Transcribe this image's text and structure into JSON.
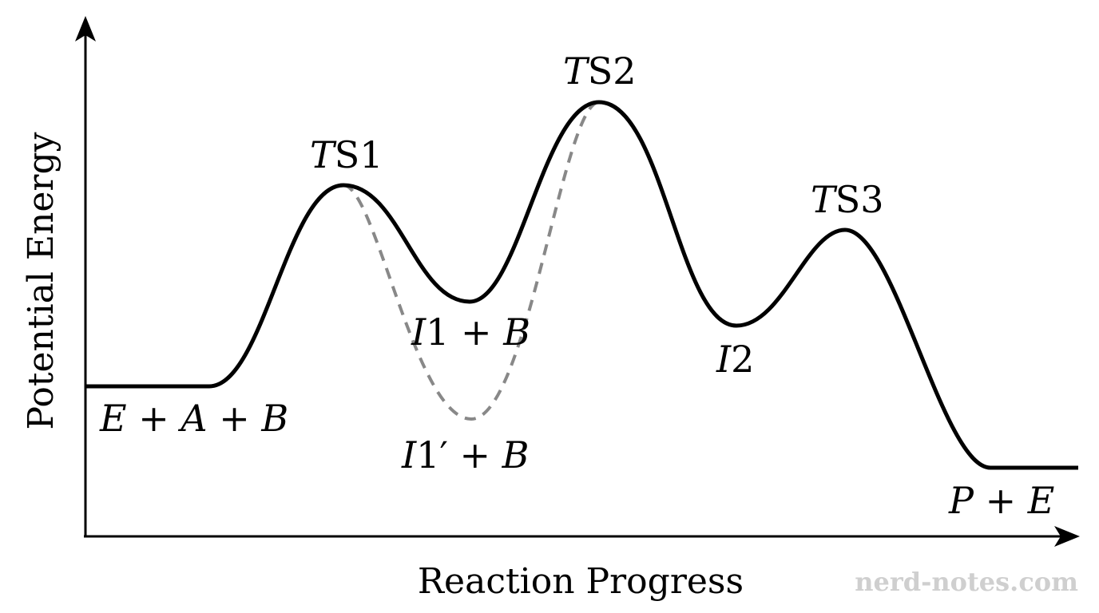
{
  "axes": {
    "x_title": "Reaction Progress",
    "y_title": "Potential Energy"
  },
  "states": [
    {
      "id": "reactants",
      "label": "E + A + B",
      "parts": [
        {
          "t": "E",
          "i": true
        },
        {
          "t": " + ",
          "i": false
        },
        {
          "t": "A",
          "i": true
        },
        {
          "t": " + ",
          "i": false
        },
        {
          "t": "B",
          "i": true
        }
      ]
    },
    {
      "id": "ts1",
      "label": "TS1",
      "parts": [
        {
          "t": "T",
          "i": true
        },
        {
          "t": "S1",
          "i": false
        }
      ]
    },
    {
      "id": "i1",
      "label": "I1 + B",
      "parts": [
        {
          "t": "I",
          "i": true
        },
        {
          "t": "1 + ",
          "i": false
        },
        {
          "t": "B",
          "i": true
        }
      ]
    },
    {
      "id": "i1prime",
      "label": "I1′ + B",
      "parts": [
        {
          "t": "I",
          "i": true
        },
        {
          "t": "1′ + ",
          "i": false
        },
        {
          "t": "B",
          "i": true
        }
      ]
    },
    {
      "id": "ts2",
      "label": "TS2",
      "parts": [
        {
          "t": "T",
          "i": true
        },
        {
          "t": "S2",
          "i": false
        }
      ]
    },
    {
      "id": "i2",
      "label": "I2",
      "parts": [
        {
          "t": "I",
          "i": true
        },
        {
          "t": "2",
          "i": false
        }
      ]
    },
    {
      "id": "ts3",
      "label": "TS3",
      "parts": [
        {
          "t": "T",
          "i": true
        },
        {
          "t": "S3",
          "i": false
        }
      ]
    },
    {
      "id": "products",
      "label": "P + E",
      "parts": [
        {
          "t": "P",
          "i": true
        },
        {
          "t": " + ",
          "i": false
        },
        {
          "t": "E",
          "i": true
        }
      ]
    }
  ],
  "paths": {
    "main_color": "#000000",
    "alternate_color": "#888888",
    "alternate_style": "dashed"
  },
  "watermark": "nerd-notes.com"
}
